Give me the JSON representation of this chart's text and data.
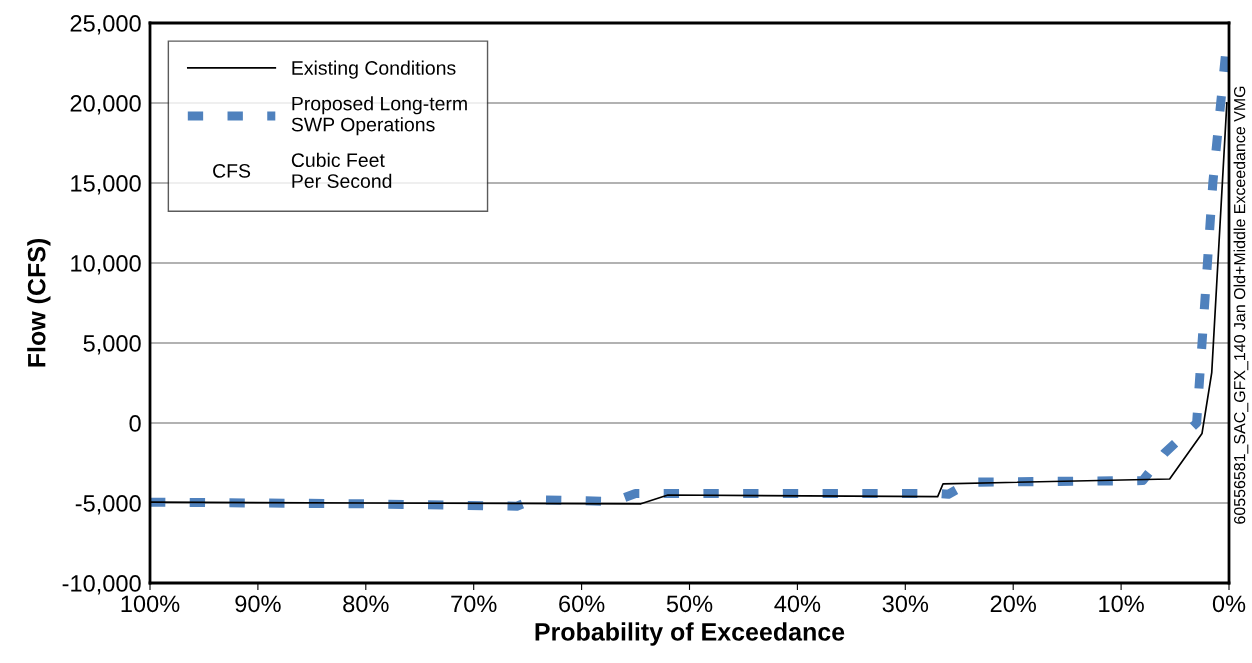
{
  "chart_data": {
    "type": "line",
    "xlabel": "Probability of Exceedance",
    "ylabel": "Flow (CFS)",
    "xlim": [
      100,
      0
    ],
    "xticks": [
      {
        "value": 100,
        "label": "100%"
      },
      {
        "value": 90,
        "label": "90%"
      },
      {
        "value": 80,
        "label": "80%"
      },
      {
        "value": 70,
        "label": "70%"
      },
      {
        "value": 60,
        "label": "60%"
      },
      {
        "value": 50,
        "label": "50%"
      },
      {
        "value": 40,
        "label": "40%"
      },
      {
        "value": 30,
        "label": "30%"
      },
      {
        "value": 20,
        "label": "20%"
      },
      {
        "value": 10,
        "label": "10%"
      },
      {
        "value": 0,
        "label": "0%"
      }
    ],
    "ylim": [
      -10000,
      25000
    ],
    "yticks": [
      {
        "value": -10000,
        "label": "-10,000"
      },
      {
        "value": -5000,
        "label": "-5,000"
      },
      {
        "value": 0,
        "label": "0"
      },
      {
        "value": 5000,
        "label": "5,000"
      },
      {
        "value": 10000,
        "label": "10,000"
      },
      {
        "value": 15000,
        "label": "15,000"
      },
      {
        "value": 20000,
        "label": "20,000"
      },
      {
        "value": 25000,
        "label": "25,000"
      }
    ],
    "grid": "y",
    "legend": "top left",
    "marker": "none",
    "series": [
      {
        "name": "Existing Conditions",
        "color": "#000000",
        "line_style": "solid",
        "x": [
          100,
          80,
          54.5,
          52,
          27,
          26.5,
          5.5,
          2.5,
          1.6,
          0.2
        ],
        "values": [
          -4950,
          -5000,
          -5050,
          -4500,
          -4600,
          -3800,
          -3500,
          -650,
          3150,
          20000
        ]
      },
      {
        "name": "Proposed Long-term\nSWP Operations",
        "color": "#4f81bd",
        "line_style": "dashed",
        "x": [
          100,
          80,
          66,
          64.5,
          57,
          55,
          27,
          26,
          24,
          8,
          6,
          3,
          2.5,
          1.5,
          0.3
        ],
        "values": [
          -4950,
          -5050,
          -5200,
          -4800,
          -4900,
          -4400,
          -4400,
          -4450,
          -3700,
          -3600,
          -1900,
          0,
          5000,
          15000,
          23200
        ]
      }
    ],
    "annotations": [
      "CFS",
      "Cubic Feet\nPer Second",
      "60556581_SAC_GFX_140 Jan Old+Middle Exceedance VMG"
    ]
  }
}
